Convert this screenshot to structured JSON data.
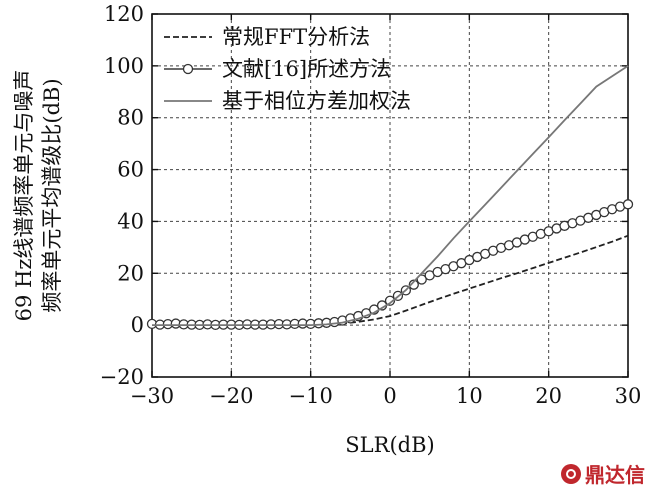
{
  "chart_data": {
    "type": "line",
    "title": "",
    "xlabel": "SLR(dB)",
    "ylabel_lines": [
      "69 Hz线谱频率单元与噪声",
      "频率单元平均谱级比(dB)"
    ],
    "xlim": [
      -30,
      30
    ],
    "ylim": [
      -20,
      120
    ],
    "xticks": [
      -30,
      -20,
      -10,
      0,
      10,
      20,
      30
    ],
    "yticks": [
      -20,
      0,
      20,
      40,
      60,
      80,
      100,
      120
    ],
    "xtick_labels": [
      "−30",
      "−20",
      "−10",
      "0",
      "10",
      "20",
      "30"
    ],
    "ytick_labels": [
      "−20",
      "0",
      "20",
      "40",
      "60",
      "80",
      "100",
      "120"
    ],
    "grid": true,
    "legend_position": "top-left",
    "series": [
      {
        "name": "常规FFT分析法",
        "style": "dashed",
        "color": "#222222",
        "x": [
          -30,
          -20,
          -10,
          -8,
          -6,
          -4,
          -2,
          0,
          2,
          4,
          6,
          8,
          10,
          12,
          14,
          16,
          18,
          20,
          22,
          24,
          26,
          28,
          30
        ],
        "y": [
          0,
          0,
          0,
          0.2,
          0.6,
          1.3,
          2.2,
          3.5,
          5.6,
          7.8,
          10.0,
          12.1,
          14.1,
          16.1,
          18.1,
          20.0,
          22.0,
          24.0,
          26.0,
          28.0,
          30.1,
          32.2,
          34.5
        ]
      },
      {
        "name": "文献[16]所述方法",
        "style": "solid-circle",
        "color": "#555555",
        "x": [
          -30,
          -29,
          -28,
          -27,
          -26,
          -25,
          -24,
          -23,
          -22,
          -21,
          -20,
          -19,
          -18,
          -17,
          -16,
          -15,
          -14,
          -13,
          -12,
          -11,
          -10,
          -9,
          -8,
          -7,
          -6,
          -5,
          -4,
          -3,
          -2,
          -1,
          0,
          1,
          2,
          3,
          4,
          5,
          6,
          7,
          8,
          9,
          10,
          11,
          12,
          13,
          14,
          15,
          16,
          17,
          18,
          19,
          20,
          21,
          22,
          23,
          24,
          25,
          26,
          27,
          28,
          29,
          30
        ],
        "y": [
          0.5,
          0.2,
          0.4,
          0.6,
          0.3,
          0.2,
          0.1,
          0.3,
          0.1,
          0.2,
          0.2,
          0.1,
          0.3,
          0.2,
          0.2,
          0.3,
          0.4,
          0.3,
          0.5,
          0.6,
          0.5,
          0.7,
          0.9,
          1.2,
          1.8,
          2.6,
          3.5,
          4.6,
          6.0,
          7.6,
          9.4,
          11.3,
          13.4,
          15.6,
          17.6,
          19.2,
          20.5,
          21.6,
          22.7,
          23.9,
          25.1,
          26.3,
          27.5,
          28.7,
          29.8,
          30.8,
          31.9,
          33.0,
          34.1,
          35.2,
          36.2,
          37.3,
          38.3,
          39.3,
          40.3,
          41.4,
          42.5,
          43.6,
          44.7,
          45.7,
          46.6
        ]
      },
      {
        "name": "基于相位方差加权法",
        "style": "solid",
        "color": "#777777",
        "x": [
          -30,
          -20,
          -10,
          -8,
          -6,
          -4,
          -2,
          0,
          2,
          4,
          6,
          8,
          10,
          12,
          14,
          16,
          18,
          20,
          22,
          24,
          26,
          28,
          30
        ],
        "y": [
          0,
          0,
          0,
          0.3,
          1.0,
          2.5,
          4.8,
          8.5,
          13.5,
          20.0,
          26.5,
          33.5,
          40.0,
          46.5,
          53.0,
          59.5,
          66.0,
          72.5,
          79.0,
          85.5,
          92.0,
          96.0,
          100.0
        ]
      }
    ]
  },
  "watermark": {
    "text": "鼎达信"
  }
}
